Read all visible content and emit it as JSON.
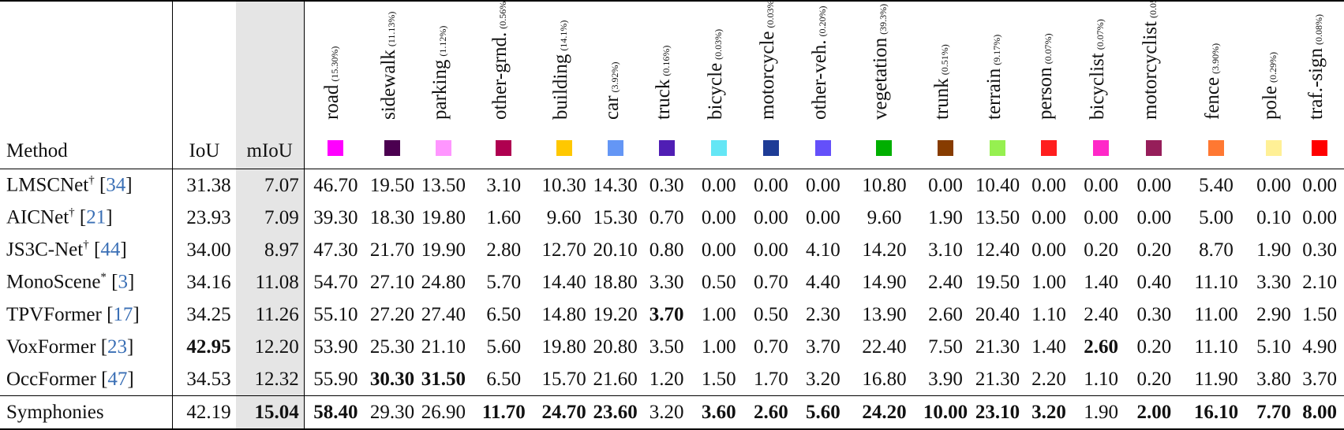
{
  "header": {
    "method": "Method",
    "iou": "IoU",
    "miou": "mIoU"
  },
  "classes": [
    {
      "name": "road",
      "freq": "(15.30%)",
      "color": "#ff00ff"
    },
    {
      "name": "sidewalk",
      "freq": "(11.13%)",
      "color": "#4b0050"
    },
    {
      "name": "parking",
      "freq": "(1.12%)",
      "color": "#ff96ff"
    },
    {
      "name": "other-grnd.",
      "freq": "(0.56%)",
      "color": "#af0050"
    },
    {
      "name": "building",
      "freq": "(14.1%)",
      "color": "#ffc800"
    },
    {
      "name": "car",
      "freq": "(3.92%)",
      "color": "#6496f5"
    },
    {
      "name": "truck",
      "freq": "(0.16%)",
      "color": "#501eb4"
    },
    {
      "name": "bicycle",
      "freq": "(0.03%)",
      "color": "#64e6f5"
    },
    {
      "name": "motorcycle",
      "freq": "(0.03%)",
      "color": "#1e3c96"
    },
    {
      "name": "other-veh.",
      "freq": "(0.20%)",
      "color": "#6450fa"
    },
    {
      "name": "vegetation",
      "freq": "(39.3%)",
      "color": "#00af00"
    },
    {
      "name": "trunk",
      "freq": "(0.51%)",
      "color": "#873c00"
    },
    {
      "name": "terrain",
      "freq": "(9.17%)",
      "color": "#96f050"
    },
    {
      "name": "person",
      "freq": "(0.07%)",
      "color": "#ff1e1e"
    },
    {
      "name": "bicyclist",
      "freq": "(0.07%)",
      "color": "#ff28c8"
    },
    {
      "name": "motorcyclist",
      "freq": "(0.05%)",
      "color": "#961e5a"
    },
    {
      "name": "fence",
      "freq": "(3.90%)",
      "color": "#ff7832"
    },
    {
      "name": "pole",
      "freq": "(0.29%)",
      "color": "#fff096"
    },
    {
      "name": "traf.-sign",
      "freq": "(0.08%)",
      "color": "#ff0000"
    }
  ],
  "rows": [
    {
      "method": "LMSCNet",
      "sup": "†",
      "ref": "34",
      "iou": "31.38",
      "miou": "7.07",
      "vals": [
        "46.70",
        "19.50",
        "13.50",
        "3.10",
        "10.30",
        "14.30",
        "0.30",
        "0.00",
        "0.00",
        "0.00",
        "10.80",
        "0.00",
        "10.40",
        "0.00",
        "0.00",
        "0.00",
        "5.40",
        "0.00",
        "0.00"
      ],
      "bold": []
    },
    {
      "method": "AICNet",
      "sup": "†",
      "ref": "21",
      "iou": "23.93",
      "miou": "7.09",
      "vals": [
        "39.30",
        "18.30",
        "19.80",
        "1.60",
        "9.60",
        "15.30",
        "0.70",
        "0.00",
        "0.00",
        "0.00",
        "9.60",
        "1.90",
        "13.50",
        "0.00",
        "0.00",
        "0.00",
        "5.00",
        "0.10",
        "0.00"
      ],
      "bold": []
    },
    {
      "method": "JS3C-Net",
      "sup": "†",
      "ref": "44",
      "iou": "34.00",
      "miou": "8.97",
      "vals": [
        "47.30",
        "21.70",
        "19.90",
        "2.80",
        "12.70",
        "20.10",
        "0.80",
        "0.00",
        "0.00",
        "4.10",
        "14.20",
        "3.10",
        "12.40",
        "0.00",
        "0.20",
        "0.20",
        "8.70",
        "1.90",
        "0.30"
      ],
      "bold": []
    },
    {
      "method": "MonoScene",
      "sup": "*",
      "ref": "3",
      "iou": "34.16",
      "miou": "11.08",
      "vals": [
        "54.70",
        "27.10",
        "24.80",
        "5.70",
        "14.40",
        "18.80",
        "3.30",
        "0.50",
        "0.70",
        "4.40",
        "14.90",
        "2.40",
        "19.50",
        "1.00",
        "1.40",
        "0.40",
        "11.10",
        "3.30",
        "2.10"
      ],
      "bold": []
    },
    {
      "method": "TPVFormer",
      "sup": "",
      "ref": "17",
      "iou": "34.25",
      "miou": "11.26",
      "vals": [
        "55.10",
        "27.20",
        "27.40",
        "6.50",
        "14.80",
        "19.20",
        "3.70",
        "1.00",
        "0.50",
        "2.30",
        "13.90",
        "2.60",
        "20.40",
        "1.10",
        "2.40",
        "0.30",
        "11.00",
        "2.90",
        "1.50"
      ],
      "bold": [
        6
      ]
    },
    {
      "method": "VoxFormer",
      "sup": "",
      "ref": "23",
      "iou": "42.95",
      "miou": "12.20",
      "vals": [
        "53.90",
        "25.30",
        "21.10",
        "5.60",
        "19.80",
        "20.80",
        "3.50",
        "1.00",
        "0.70",
        "3.70",
        "22.40",
        "7.50",
        "21.30",
        "1.40",
        "2.60",
        "0.20",
        "11.10",
        "5.10",
        "4.90"
      ],
      "bold": [
        14
      ],
      "iou_bold": true
    },
    {
      "method": "OccFormer",
      "sup": "",
      "ref": "47",
      "iou": "34.53",
      "miou": "12.32",
      "vals": [
        "55.90",
        "30.30",
        "31.50",
        "6.50",
        "15.70",
        "21.60",
        "1.20",
        "1.50",
        "1.70",
        "3.20",
        "16.80",
        "3.90",
        "21.30",
        "2.20",
        "1.10",
        "0.20",
        "11.90",
        "3.80",
        "3.70"
      ],
      "bold": [
        1,
        2
      ]
    }
  ],
  "ours": {
    "method": "Symphonies",
    "iou": "42.19",
    "miou": "15.04",
    "vals": [
      "58.40",
      "29.30",
      "26.90",
      "11.70",
      "24.70",
      "23.60",
      "3.20",
      "3.60",
      "2.60",
      "5.60",
      "24.20",
      "10.00",
      "23.10",
      "3.20",
      "1.90",
      "2.00",
      "16.10",
      "7.70",
      "8.00"
    ],
    "bold": [
      0,
      3,
      4,
      5,
      7,
      8,
      9,
      10,
      11,
      12,
      13,
      15,
      16,
      17,
      18
    ],
    "miou_bold": true
  }
}
